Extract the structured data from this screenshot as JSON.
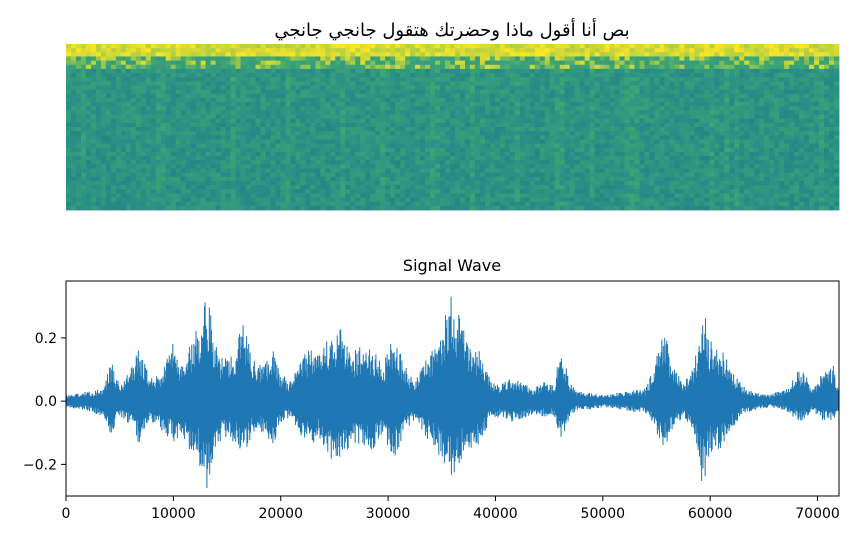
{
  "colors": {
    "waveform": "#1f77b4",
    "spectrogram_low": "#2a8f87",
    "spectrogram_mid": "#3ea772",
    "spectrogram_high": "#fde725",
    "spectrogram_dark": "#1f6f79",
    "axes": "#000000"
  },
  "chart_data": [
    {
      "type": "heatmap",
      "title": "بص أنا أقول ماذا وحضرتك هتقول جانجي جانجي",
      "axes_visible": false,
      "description_colormap": "viridis"
    },
    {
      "type": "line",
      "title": "Signal Wave",
      "xlabel": "",
      "ylabel": "",
      "xlim": [
        0,
        72000
      ],
      "ylim": [
        -0.3,
        0.38
      ],
      "x_ticks": [
        0,
        10000,
        20000,
        30000,
        40000,
        50000,
        60000,
        70000
      ],
      "x_tick_labels": [
        "0",
        "10000",
        "20000",
        "30000",
        "40000",
        "50000",
        "60000",
        "70000"
      ],
      "y_ticks": [
        0.2,
        0.0,
        -0.2
      ],
      "y_tick_labels": [
        "0.2",
        "0.0",
        "−0.2"
      ],
      "grid": false,
      "envelope": {
        "x": [
          0,
          2000,
          3500,
          4200,
          5000,
          6200,
          6800,
          7800,
          9000,
          10000,
          10800,
          11500,
          12300,
          13100,
          13800,
          14500,
          15500,
          16500,
          17500,
          18500,
          19300,
          20000,
          21000,
          22000,
          23000,
          23500,
          24500,
          25500,
          26500,
          27500,
          28500,
          29500,
          30500,
          31500,
          32500,
          33500,
          34500,
          35500,
          36000,
          36500,
          37500,
          38500,
          39500,
          40500,
          41500,
          42500,
          43500,
          44500,
          45500,
          46100,
          46800,
          47500,
          48500,
          50000,
          52000,
          54000,
          55000,
          55600,
          56500,
          57500,
          58500,
          59300,
          60000,
          61000,
          62000,
          63000,
          64000,
          65500,
          67000,
          68500,
          69500,
          70500,
          71500,
          72000
        ],
        "max": [
          0.02,
          0.03,
          0.04,
          0.13,
          0.05,
          0.11,
          0.18,
          0.08,
          0.1,
          0.19,
          0.12,
          0.18,
          0.24,
          0.37,
          0.2,
          0.14,
          0.16,
          0.25,
          0.13,
          0.12,
          0.18,
          0.09,
          0.06,
          0.15,
          0.18,
          0.14,
          0.21,
          0.24,
          0.16,
          0.18,
          0.17,
          0.11,
          0.22,
          0.12,
          0.06,
          0.13,
          0.18,
          0.31,
          0.35,
          0.29,
          0.18,
          0.17,
          0.07,
          0.05,
          0.08,
          0.06,
          0.04,
          0.06,
          0.05,
          0.2,
          0.07,
          0.03,
          0.03,
          0.02,
          0.03,
          0.04,
          0.14,
          0.24,
          0.12,
          0.06,
          0.11,
          0.3,
          0.2,
          0.17,
          0.1,
          0.05,
          0.03,
          0.02,
          0.04,
          0.11,
          0.04,
          0.09,
          0.12,
          0.04
        ],
        "min": [
          -0.02,
          -0.03,
          -0.05,
          -0.11,
          -0.05,
          -0.09,
          -0.14,
          -0.06,
          -0.1,
          -0.13,
          -0.11,
          -0.16,
          -0.18,
          -0.3,
          -0.17,
          -0.12,
          -0.13,
          -0.17,
          -0.1,
          -0.1,
          -0.15,
          -0.07,
          -0.05,
          -0.12,
          -0.14,
          -0.12,
          -0.18,
          -0.2,
          -0.14,
          -0.15,
          -0.16,
          -0.1,
          -0.19,
          -0.1,
          -0.06,
          -0.12,
          -0.16,
          -0.23,
          -0.26,
          -0.21,
          -0.15,
          -0.14,
          -0.06,
          -0.05,
          -0.07,
          -0.06,
          -0.04,
          -0.05,
          -0.05,
          -0.14,
          -0.06,
          -0.03,
          -0.03,
          -0.02,
          -0.03,
          -0.04,
          -0.1,
          -0.16,
          -0.09,
          -0.05,
          -0.1,
          -0.28,
          -0.17,
          -0.15,
          -0.09,
          -0.04,
          -0.03,
          -0.02,
          -0.03,
          -0.07,
          -0.03,
          -0.06,
          -0.06,
          -0.03
        ]
      }
    }
  ]
}
